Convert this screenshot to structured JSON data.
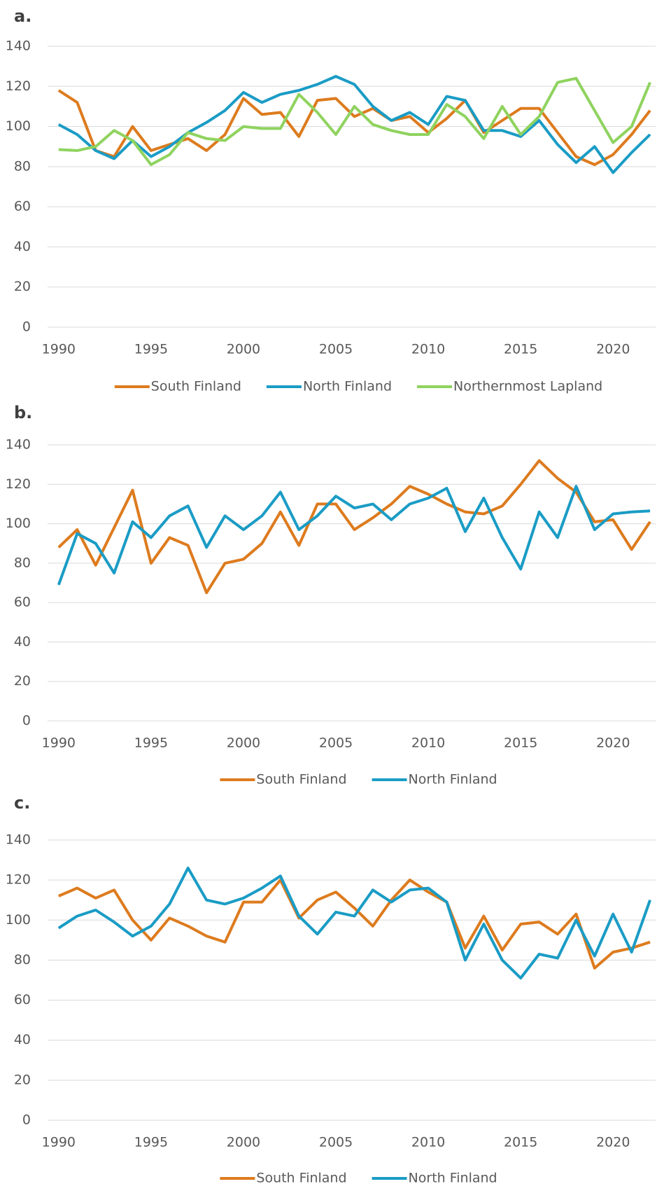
{
  "chart_data": [
    {
      "type": "line",
      "panel_label": "a.",
      "x": [
        1990,
        1991,
        1992,
        1993,
        1994,
        1995,
        1996,
        1997,
        1998,
        1999,
        2000,
        2001,
        2002,
        2003,
        2004,
        2005,
        2006,
        2007,
        2008,
        2009,
        2010,
        2011,
        2012,
        2013,
        2014,
        2015,
        2016,
        2017,
        2018,
        2019,
        2020,
        2021,
        2022
      ],
      "series": [
        {
          "name": "South Finland",
          "color": "#dd7b1e",
          "values": [
            118,
            112,
            88,
            85,
            100,
            88,
            91,
            94,
            88,
            96,
            114,
            106,
            107,
            95,
            113,
            114,
            105,
            109,
            103,
            105,
            97,
            104,
            113,
            97,
            103,
            109,
            109,
            97,
            85,
            81,
            86,
            96,
            108
          ]
        },
        {
          "name": "North Finland",
          "color": "#1a9cc5",
          "values": [
            101,
            96,
            88,
            84,
            93,
            85,
            90,
            97,
            102,
            108,
            117,
            112,
            116,
            118,
            121,
            125,
            121,
            110,
            103,
            107,
            101,
            115,
            113,
            98,
            98,
            95,
            103,
            91,
            82,
            90,
            77,
            87,
            96
          ]
        },
        {
          "name": "Northernmost Lapland",
          "color": "#8fd35f",
          "values": [
            88.5,
            88,
            90,
            98,
            93,
            81,
            86,
            97,
            94,
            93,
            100,
            99,
            99,
            116,
            107,
            96,
            110,
            101,
            98,
            96,
            96,
            111,
            105,
            94,
            110,
            96,
            105,
            122,
            124,
            108,
            92,
            100,
            122
          ]
        }
      ],
      "xlim": [
        1989.4,
        2022.3
      ],
      "xticks": [
        1990,
        1995,
        2000,
        2005,
        2010,
        2015,
        2020
      ],
      "ylim": [
        0,
        140
      ],
      "yticks": [
        0,
        20,
        40,
        60,
        80,
        100,
        120,
        140
      ],
      "grid": true
    },
    {
      "type": "line",
      "panel_label": "b.",
      "x": [
        1990,
        1991,
        1992,
        1993,
        1994,
        1995,
        1996,
        1997,
        1998,
        1999,
        2000,
        2001,
        2002,
        2003,
        2004,
        2005,
        2006,
        2007,
        2008,
        2009,
        2010,
        2011,
        2012,
        2013,
        2014,
        2015,
        2016,
        2017,
        2018,
        2019,
        2020,
        2021,
        2022
      ],
      "series": [
        {
          "name": "South Finland",
          "color": "#dd7b1e",
          "values": [
            88,
            97,
            79,
            98,
            117,
            80,
            93,
            89,
            65,
            80,
            82,
            90,
            106,
            89,
            110,
            110,
            97,
            103,
            110,
            119,
            115,
            110,
            106,
            105,
            109,
            120,
            132,
            123,
            116,
            101,
            102,
            87,
            101
          ]
        },
        {
          "name": "North Finland",
          "color": "#1a9cc5",
          "values": [
            69,
            95,
            90,
            75,
            101,
            93,
            104,
            109,
            88,
            104,
            97,
            104,
            116,
            97,
            104,
            114,
            108,
            110,
            102,
            110,
            113,
            118,
            96,
            113,
            93,
            77,
            106,
            93,
            119,
            97,
            105,
            106,
            106.5
          ]
        }
      ],
      "xlim": [
        1989.4,
        2022.3
      ],
      "xticks": [
        1990,
        1995,
        2000,
        2005,
        2010,
        2015,
        2020
      ],
      "ylim": [
        0,
        140
      ],
      "yticks": [
        0,
        20,
        40,
        60,
        80,
        100,
        120,
        140
      ],
      "grid": true
    },
    {
      "type": "line",
      "panel_label": "c.",
      "x": [
        1990,
        1991,
        1992,
        1993,
        1994,
        1995,
        1996,
        1997,
        1998,
        1999,
        2000,
        2001,
        2002,
        2003,
        2004,
        2005,
        2006,
        2007,
        2008,
        2009,
        2010,
        2011,
        2012,
        2013,
        2014,
        2015,
        2016,
        2017,
        2018,
        2019,
        2020,
        2021,
        2022
      ],
      "series": [
        {
          "name": "South Finland",
          "color": "#dd7b1e",
          "values": [
            112,
            116,
            111,
            115,
            100,
            90,
            101,
            97,
            92,
            89,
            109,
            109,
            120,
            101,
            110,
            114,
            106,
            97,
            110,
            120,
            114,
            109,
            86,
            102,
            85,
            98,
            99,
            93,
            103,
            76,
            84,
            86,
            89
          ]
        },
        {
          "name": "North Finland",
          "color": "#1a9cc5",
          "values": [
            96,
            102,
            105,
            99,
            92,
            97,
            108,
            126,
            110,
            108,
            111,
            116,
            122,
            102,
            93,
            104,
            102,
            115,
            109,
            115,
            116,
            109,
            80,
            98,
            80,
            71,
            83,
            81,
            100,
            82,
            103,
            84,
            110
          ]
        }
      ],
      "xlim": [
        1989.4,
        2022.3
      ],
      "xticks": [
        1990,
        1995,
        2000,
        2005,
        2010,
        2015,
        2020
      ],
      "ylim": [
        0,
        140
      ],
      "yticks": [
        0,
        20,
        40,
        60,
        80,
        100,
        120,
        140
      ],
      "grid": true
    }
  ]
}
